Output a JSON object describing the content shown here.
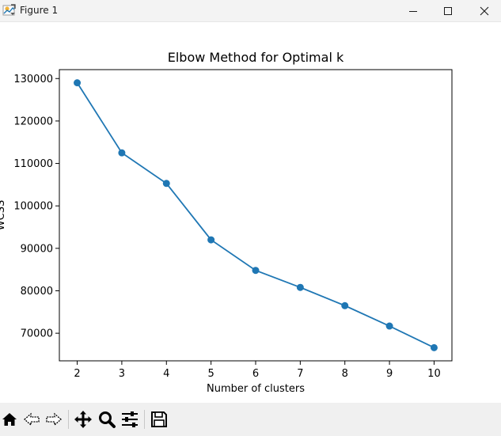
{
  "window": {
    "title": "Figure 1",
    "icons": {
      "app": "matplotlib-figure-icon",
      "minimize": "minimize-icon",
      "maximize": "maximize-icon",
      "close": "close-icon"
    }
  },
  "toolbar": {
    "items": [
      {
        "name": "home-icon",
        "tooltip": ""
      },
      {
        "name": "back-arrow-icon",
        "tooltip": ""
      },
      {
        "name": "forward-arrow-icon",
        "tooltip": ""
      },
      {
        "name": "pan-move-icon",
        "tooltip": ""
      },
      {
        "name": "zoom-magnifier-icon",
        "tooltip": ""
      },
      {
        "name": "configure-subplots-icon",
        "tooltip": ""
      },
      {
        "name": "save-floppy-icon",
        "tooltip": ""
      }
    ]
  },
  "colors": {
    "series": "#1f77b4",
    "axis": "#000000",
    "titlebar": "#f3f3f3",
    "toolbar": "#f0f0f0"
  },
  "chart_data": {
    "type": "line",
    "title": "Elbow Method for Optimal k",
    "xlabel": "Number of clusters",
    "ylabel": "WCSS",
    "x": [
      2,
      3,
      4,
      5,
      6,
      7,
      8,
      9,
      10
    ],
    "series": [
      {
        "values": [
          129000,
          112500,
          105300,
          92000,
          84800,
          80800,
          76500,
          71700,
          66600
        ],
        "marker": "circle"
      }
    ],
    "xlim": [
      1.6,
      10.4
    ],
    "ylim": [
      63500,
      132100
    ],
    "xticks": [
      2,
      3,
      4,
      5,
      6,
      7,
      8,
      9,
      10
    ],
    "yticks": [
      70000,
      80000,
      90000,
      100000,
      110000,
      120000,
      130000
    ],
    "grid": false,
    "legend": "none"
  }
}
